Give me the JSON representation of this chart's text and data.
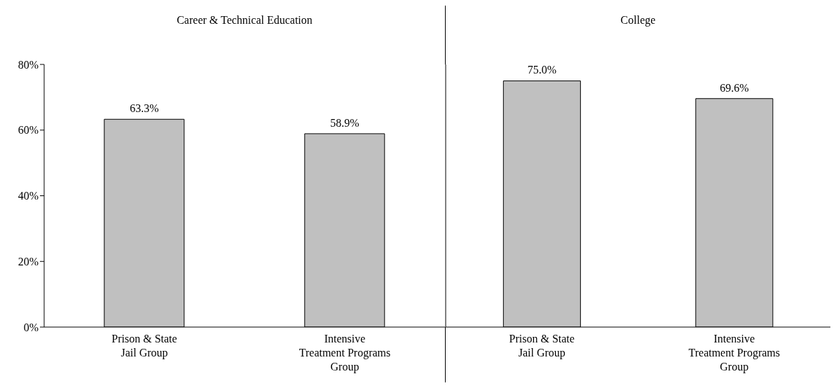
{
  "chart_data": [
    {
      "type": "bar",
      "title": "Career & Technical Education",
      "categories": [
        "Prison & State Jail Group",
        "Intensive Treatment Programs Group"
      ],
      "values": [
        63.3,
        58.9
      ],
      "value_labels": [
        "63.3%",
        "58.9%"
      ],
      "color": "#c0c0c0",
      "ylim": [
        0,
        80
      ],
      "yticks": [
        {
          "value": 0,
          "label": "0%"
        },
        {
          "value": 20,
          "label": "20%"
        },
        {
          "value": 40,
          "label": "40%"
        },
        {
          "value": 60,
          "label": "60%"
        },
        {
          "value": 80,
          "label": "80%"
        }
      ]
    },
    {
      "type": "bar",
      "title": "College",
      "categories": [
        "Prison & State Jail Group",
        "Intensive Treatment Programs Group"
      ],
      "values": [
        75.0,
        69.6
      ],
      "value_labels": [
        "75.0%",
        "69.6%"
      ],
      "color": "#c0c0c0",
      "ylim": [
        0,
        80
      ],
      "tick_labels": "x"
    }
  ]
}
